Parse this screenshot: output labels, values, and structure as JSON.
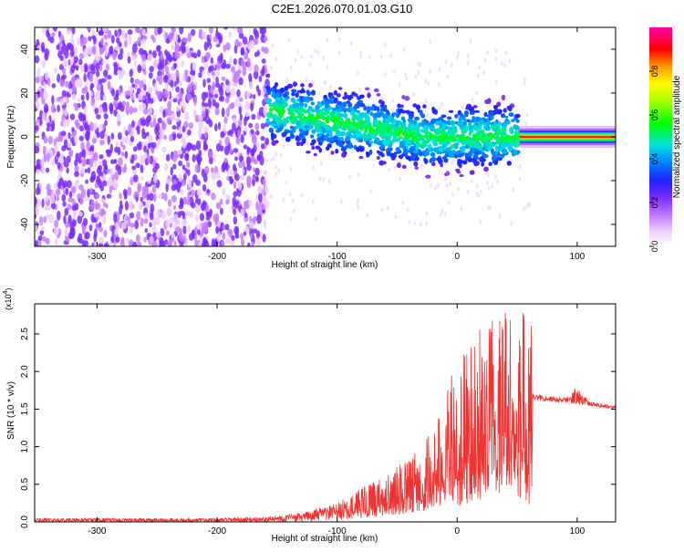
{
  "title": "C2E1.2026.070.01.03.G10",
  "chart_data": [
    {
      "type": "heatmap",
      "xlabel": "Height of straight line (km)",
      "ylabel": "Frequency (Hz)",
      "xlim": [
        -352,
        132
      ],
      "ylim": [
        -50,
        50
      ],
      "xticks": [
        -300,
        -200,
        -100,
        0,
        100
      ],
      "xtick_labels": [
        "-300",
        "-200",
        "-100",
        "0",
        "100"
      ],
      "yticks": [
        -40,
        -20,
        0,
        20,
        40
      ],
      "ytick_labels": [
        "-40",
        "-20",
        "0",
        "20",
        "40"
      ],
      "grid": false,
      "colorbar": {
        "label": "Normalized spectral amplitude",
        "range": [
          0.0,
          1.0
        ],
        "ticks": [
          0.0,
          0.2,
          0.4,
          0.6,
          0.8
        ],
        "tick_labels": [
          "0.0",
          "0.2",
          "0.4",
          "0.6",
          "0.8"
        ],
        "colormap": "rainbow"
      },
      "regions": [
        {
          "name": "noise",
          "x_range": [
            -352,
            -158
          ],
          "freq_range": [
            -50,
            50
          ],
          "amplitude": 0.15
        },
        {
          "name": "signal-trace",
          "x_range": [
            -158,
            52
          ],
          "freq_center": [
            12,
            0
          ],
          "freq_spread": 6,
          "amplitude": 0.4
        },
        {
          "name": "clean-tone",
          "x_range": [
            52,
            132
          ],
          "freq_center": [
            0,
            0
          ],
          "amplitude": 1.0
        }
      ]
    },
    {
      "type": "line",
      "xlabel": "Height of straight line (km)",
      "ylabel": "SNR (10 * v/v)",
      "y_multiplier_label": "(x10",
      "y_multiplier_exp": "4",
      "y_multiplier_suffix": ")",
      "xlim": [
        -352,
        132
      ],
      "ylim": [
        0,
        2.9
      ],
      "xticks": [
        -300,
        -200,
        -100,
        0,
        100
      ],
      "xtick_labels": [
        "-300",
        "-200",
        "-100",
        "0",
        "100"
      ],
      "yticks": [
        0.0,
        0.5,
        1.0,
        1.5,
        2.0,
        2.5
      ],
      "ytick_labels": [
        "0.0",
        "0.5",
        "1.0",
        "1.5",
        "2.0",
        "2.5"
      ],
      "grid": false,
      "series": [
        {
          "name": "SNR",
          "color": "#ee3333",
          "envelope": [
            {
              "x": -352,
              "lo": 0.0,
              "hi": 0.05
            },
            {
              "x": -200,
              "lo": 0.0,
              "hi": 0.05
            },
            {
              "x": -160,
              "lo": 0.0,
              "hi": 0.07
            },
            {
              "x": -130,
              "lo": 0.0,
              "hi": 0.12
            },
            {
              "x": -100,
              "lo": 0.02,
              "hi": 0.25
            },
            {
              "x": -80,
              "lo": 0.05,
              "hi": 0.45
            },
            {
              "x": -60,
              "lo": 0.08,
              "hi": 0.6
            },
            {
              "x": -40,
              "lo": 0.1,
              "hi": 0.9
            },
            {
              "x": -20,
              "lo": 0.15,
              "hi": 1.2
            },
            {
              "x": 0,
              "lo": 0.2,
              "hi": 2.2
            },
            {
              "x": 20,
              "lo": 0.3,
              "hi": 2.6
            },
            {
              "x": 40,
              "lo": 0.4,
              "hi": 2.8
            },
            {
              "x": 55,
              "lo": 0.3,
              "hi": 2.8
            },
            {
              "x": 62,
              "lo": 0.2,
              "hi": 2.7
            },
            {
              "x": 63,
              "lo": 1.62,
              "hi": 1.7
            },
            {
              "x": 90,
              "lo": 1.58,
              "hi": 1.65
            },
            {
              "x": 100,
              "lo": 1.56,
              "hi": 1.8
            },
            {
              "x": 110,
              "lo": 1.54,
              "hi": 1.6
            },
            {
              "x": 132,
              "lo": 1.5,
              "hi": 1.55
            }
          ]
        }
      ]
    }
  ]
}
